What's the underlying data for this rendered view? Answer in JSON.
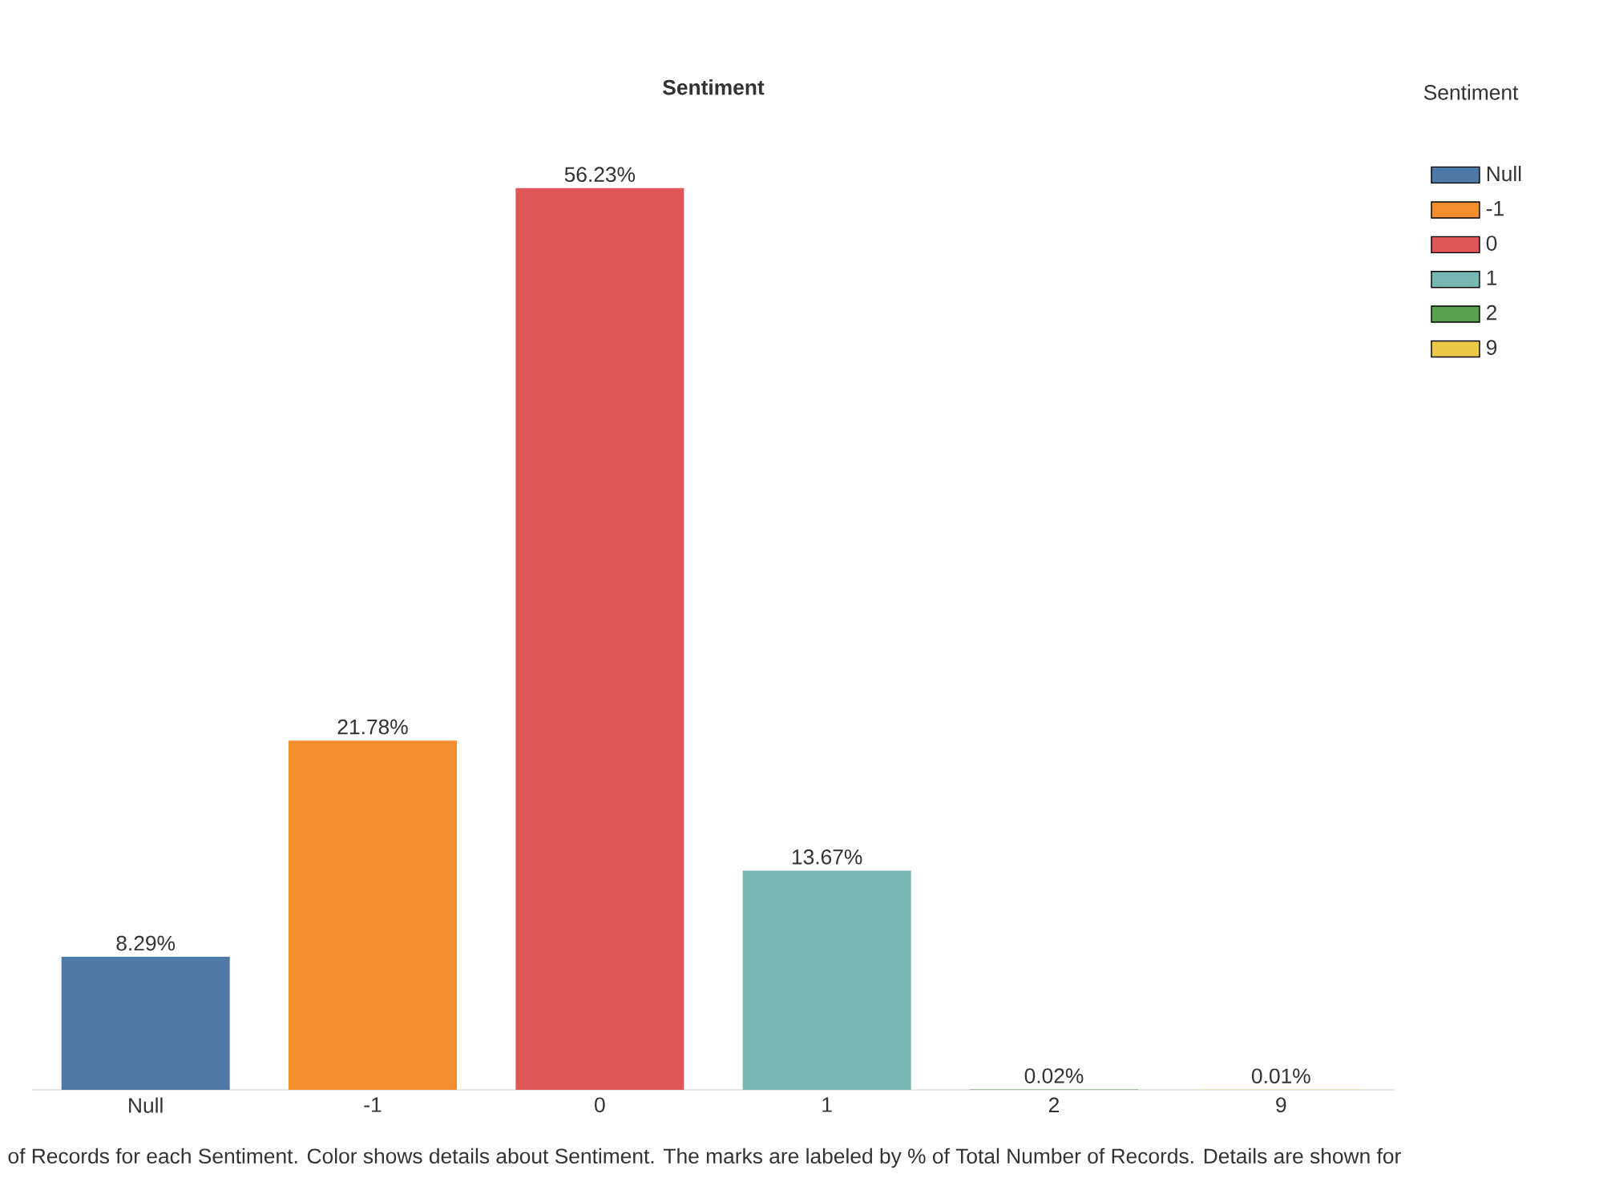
{
  "chart_data": {
    "type": "bar",
    "title": "Sentiment",
    "legend_title": "Sentiment",
    "categories": [
      "Null",
      "-1",
      "0",
      "1",
      "2",
      "9"
    ],
    "series": [
      {
        "name": "Null",
        "color": "#4e79a7",
        "values": [
          8.29,
          null,
          null,
          null,
          null,
          null
        ],
        "value_labels": [
          "8.29%",
          null,
          null,
          null,
          null,
          null
        ]
      },
      {
        "name": "-1",
        "color": "#f28e2b",
        "values": [
          null,
          21.78,
          null,
          null,
          null,
          null
        ],
        "value_labels": [
          null,
          "21.78%",
          null,
          null,
          null,
          null
        ]
      },
      {
        "name": "0",
        "color": "#e15759",
        "values": [
          null,
          null,
          56.23,
          null,
          null,
          null
        ],
        "value_labels": [
          null,
          null,
          "56.23%",
          null,
          null,
          null
        ]
      },
      {
        "name": "1",
        "color": "#76b7b2",
        "values": [
          null,
          null,
          null,
          13.67,
          null,
          null
        ],
        "value_labels": [
          null,
          null,
          null,
          "13.67%",
          null,
          null
        ]
      },
      {
        "name": "2",
        "color": "#59a14f",
        "values": [
          null,
          null,
          null,
          null,
          0.02,
          null
        ],
        "value_labels": [
          null,
          null,
          null,
          null,
          "0.02%",
          null
        ]
      },
      {
        "name": "9",
        "color": "#edc948",
        "values": [
          null,
          null,
          null,
          null,
          null,
          0.01
        ],
        "value_labels": [
          null,
          null,
          null,
          null,
          null,
          "0.01%"
        ]
      }
    ],
    "legend": "top right",
    "tick_labels": "x",
    "annotations": [
      "of Records for each Sentiment.  Color shows details about Sentiment.  The marks are labeled by % of Total Number of Records.  Details are shown for"
    ]
  }
}
